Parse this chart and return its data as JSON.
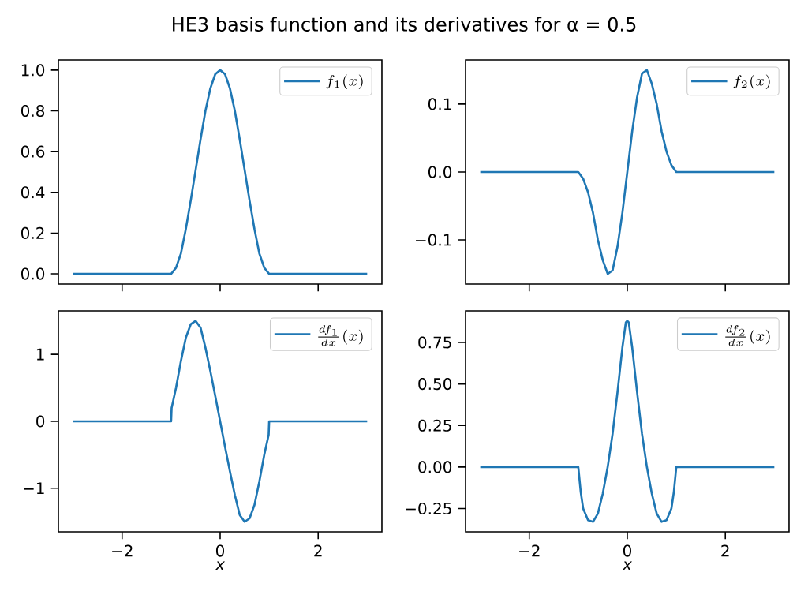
{
  "chart_data": [
    {
      "type": "line",
      "title": "HE3 basis function and its derivatives for α = 0.5",
      "legend": "top right",
      "tick_labels": "y",
      "series": [
        {
          "name": "f_1(x)",
          "color": "#1f77b4",
          "x": [
            -3,
            -1,
            -0.9,
            -0.8,
            -0.7,
            -0.6,
            -0.5,
            -0.4,
            -0.3,
            -0.2,
            -0.1,
            0,
            0.1,
            0.2,
            0.3,
            0.4,
            0.5,
            0.6,
            0.7,
            0.8,
            0.9,
            1,
            3
          ],
          "values": [
            0,
            0,
            0.03,
            0.1,
            0.22,
            0.36,
            0.51,
            0.66,
            0.8,
            0.91,
            0.98,
            1,
            0.98,
            0.91,
            0.8,
            0.66,
            0.51,
            0.36,
            0.22,
            0.1,
            0.03,
            0,
            0
          ]
        }
      ],
      "xlim": [
        -3.3,
        3.3
      ],
      "ylim": [
        -0.05,
        1.05
      ],
      "xticks": [
        {
          "value": -2,
          "label": null
        },
        {
          "value": 0,
          "label": null
        },
        {
          "value": 2,
          "label": null
        }
      ],
      "yticks": [
        {
          "value": 0,
          "label": "0.0"
        },
        {
          "value": 0.2,
          "label": "0.2"
        },
        {
          "value": 0.4,
          "label": "0.4"
        },
        {
          "value": 0.6,
          "label": "0.6"
        },
        {
          "value": 0.8,
          "label": "0.8"
        },
        {
          "value": 1,
          "label": "1.0"
        }
      ]
    },
    {
      "type": "line",
      "legend": "top right",
      "tick_labels": "y",
      "series": [
        {
          "name": "f_2(x)",
          "color": "#1f77b4",
          "x": [
            -3,
            -1,
            -0.9,
            -0.8,
            -0.7,
            -0.6,
            -0.5,
            -0.4,
            -0.3,
            -0.2,
            -0.1,
            0,
            0.1,
            0.2,
            0.3,
            0.4,
            0.5,
            0.6,
            0.7,
            0.8,
            0.9,
            1,
            3
          ],
          "values": [
            0,
            0,
            -0.01,
            -0.03,
            -0.06,
            -0.1,
            -0.13,
            -0.15,
            -0.145,
            -0.11,
            -0.06,
            0,
            0.06,
            0.11,
            0.145,
            0.15,
            0.13,
            0.1,
            0.06,
            0.03,
            0.01,
            0,
            0
          ]
        }
      ],
      "xlim": [
        -3.3,
        3.3
      ],
      "ylim": [
        -0.165,
        0.165
      ],
      "xticks": [
        {
          "value": -2,
          "label": null
        },
        {
          "value": 0,
          "label": null
        },
        {
          "value": 2,
          "label": null
        }
      ],
      "yticks": [
        {
          "value": -0.1,
          "label": "−0.1"
        },
        {
          "value": 0,
          "label": "0.0"
        },
        0.1
      ]
    },
    {
      "type": "line",
      "legend": "top right",
      "xlabel": "x",
      "series": [
        {
          "name": "\\frac{df_1}{dx}(x)",
          "color": "#1f77b4",
          "x": [
            -3,
            -1,
            -0.99,
            -0.9,
            -0.8,
            -0.7,
            -0.6,
            -0.5,
            -0.4,
            -0.3,
            -0.2,
            -0.1,
            0,
            0.1,
            0.2,
            0.3,
            0.4,
            0.5,
            0.6,
            0.7,
            0.8,
            0.9,
            0.99,
            1,
            3
          ],
          "values": [
            0,
            0,
            0.2,
            0.5,
            0.9,
            1.25,
            1.45,
            1.5,
            1.4,
            1.1,
            0.75,
            0.38,
            0,
            -0.38,
            -0.75,
            -1.1,
            -1.4,
            -1.5,
            -1.45,
            -1.25,
            -0.9,
            -0.5,
            -0.2,
            0,
            0
          ]
        }
      ],
      "xlim": [
        -3.3,
        3.3
      ],
      "ylim": [
        -1.65,
        1.65
      ],
      "xticks": [
        {
          "value": -2,
          "label": "−2"
        },
        0,
        2
      ],
      "yticks": [
        {
          "value": -1,
          "label": "−1"
        },
        0,
        1
      ]
    },
    {
      "type": "line",
      "legend": "top right",
      "xlabel": "x",
      "series": [
        {
          "name": "\\frac{df_2}{dx}(x)",
          "color": "#1f77b4",
          "x": [
            -3,
            -1,
            -0.95,
            -0.9,
            -0.8,
            -0.7,
            -0.6,
            -0.5,
            -0.4,
            -0.3,
            -0.2,
            -0.1,
            -0.03,
            0,
            0.03,
            0.1,
            0.2,
            0.3,
            0.4,
            0.5,
            0.6,
            0.7,
            0.8,
            0.9,
            0.95,
            1,
            3
          ],
          "values": [
            0,
            0,
            -0.15,
            -0.25,
            -0.32,
            -0.33,
            -0.28,
            -0.16,
            0,
            0.2,
            0.45,
            0.72,
            0.87,
            0.88,
            0.87,
            0.72,
            0.45,
            0.2,
            0,
            -0.16,
            -0.28,
            -0.33,
            -0.32,
            -0.25,
            -0.15,
            0,
            0
          ]
        }
      ],
      "xlim": [
        -3.3,
        3.3
      ],
      "ylim": [
        -0.39,
        0.94
      ],
      "xticks": [
        {
          "value": -2,
          "label": "−2"
        },
        0,
        2
      ],
      "yticks": [
        {
          "value": -0.25,
          "label": "−0.25"
        },
        {
          "value": 0,
          "label": "0.00"
        },
        {
          "value": 0.25,
          "label": "0.25"
        },
        {
          "value": 0.5,
          "label": "0.50"
        },
        {
          "value": 0.75,
          "label": "0.75"
        }
      ]
    }
  ]
}
